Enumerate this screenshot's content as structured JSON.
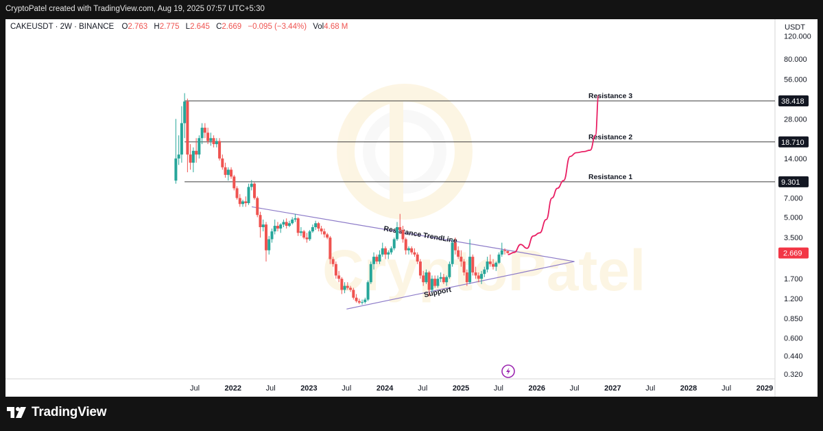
{
  "header": {
    "attribution": "CryptoPatel created with TradingView.com, Aug 19, 2025 07:57 UTC+5:30"
  },
  "legend": {
    "symbol": "CAKEUSDT · 2W · BINANCE",
    "o_label": "O",
    "o_value": "2.763",
    "h_label": "H",
    "h_value": "2.775",
    "l_label": "L",
    "l_value": "2.645",
    "c_label": "C",
    "c_value": "2.669",
    "change": "−0.095 (−3.44%)",
    "vol_label": "Vol",
    "vol_value": "4.68 M"
  },
  "footer": {
    "brand": "TradingView"
  },
  "colors": {
    "up": "#26a69a",
    "down": "#ef5350",
    "projection": "#e91e63",
    "trendline": "#8c7ac8",
    "level": "#3a3a3a",
    "price_badge": "#f23645",
    "watermark": "#f3c969"
  },
  "chart_data": {
    "type": "candlestick",
    "symbol": "CAKEUSDT",
    "interval": "2W",
    "exchange": "BINANCE",
    "y_scale": "log",
    "y_unit": "USDT",
    "y_ticks": [
      "120.000",
      "80.000",
      "56.000",
      "38.418",
      "28.000",
      "18.710",
      "14.000",
      "9.301",
      "7.000",
      "5.000",
      "3.500",
      "2.669",
      "1.700",
      "1.200",
      "0.850",
      "0.600",
      "0.440",
      "0.320"
    ],
    "y_tick_values": [
      120,
      80,
      56,
      28,
      14,
      7,
      5,
      3.5,
      1.7,
      1.2,
      0.85,
      0.6,
      0.44,
      0.32
    ],
    "x_ticks": [
      "Jul",
      "2022",
      "Jul",
      "2023",
      "Jul",
      "2024",
      "Jul",
      "2025",
      "Jul",
      "2026",
      "Jul",
      "2027",
      "Jul",
      "2028",
      "Jul",
      "2029"
    ],
    "x_tick_dates": [
      "2021-07-01",
      "2022-01-01",
      "2022-07-01",
      "2023-01-01",
      "2023-07-01",
      "2024-01-01",
      "2024-07-01",
      "2025-01-01",
      "2025-07-01",
      "2026-01-01",
      "2026-07-01",
      "2027-01-01",
      "2027-07-01",
      "2028-01-01",
      "2028-07-01",
      "2029-01-01"
    ],
    "last_price": "2.669",
    "horizontal_levels": [
      {
        "name": "Resistance 3",
        "value": 38.418,
        "label": "38.418"
      },
      {
        "name": "Resistance 2",
        "value": 18.71,
        "label": "18.710"
      },
      {
        "name": "Resistance 1",
        "value": 9.301,
        "label": "9.301"
      }
    ],
    "trendlines": [
      {
        "name": "Resistance TrendLine",
        "from": {
          "date": "2022-04-01",
          "value": 6.0
        },
        "to": {
          "date": "2026-07-01",
          "value": 2.3
        }
      },
      {
        "name": "Support",
        "from": {
          "date": "2023-07-01",
          "value": 1.0
        },
        "to": {
          "date": "2026-07-01",
          "value": 2.3
        }
      }
    ],
    "projection_path": [
      {
        "date": "2025-08-15",
        "value": 2.6
      },
      {
        "date": "2025-09-15",
        "value": 2.7
      },
      {
        "date": "2025-10-15",
        "value": 3.1
      },
      {
        "date": "2025-11-15",
        "value": 2.9
      },
      {
        "date": "2025-12-15",
        "value": 3.6
      },
      {
        "date": "2026-01-15",
        "value": 3.8
      },
      {
        "date": "2026-02-15",
        "value": 4.8
      },
      {
        "date": "2026-03-15",
        "value": 7.0
      },
      {
        "date": "2026-04-10",
        "value": 8.3
      },
      {
        "date": "2026-05-10",
        "value": 9.5
      },
      {
        "date": "2026-06-10",
        "value": 14.5
      },
      {
        "date": "2026-07-10",
        "value": 15.5
      },
      {
        "date": "2026-08-15",
        "value": 15.8
      },
      {
        "date": "2026-09-15",
        "value": 16.2
      },
      {
        "date": "2026-10-10",
        "value": 21.0
      },
      {
        "date": "2026-10-25",
        "value": 42.0
      }
    ],
    "candles": [
      {
        "date": "2021-04-01",
        "o": 9.5,
        "h": 28.0,
        "l": 9.0,
        "c": 14.0
      },
      {
        "date": "2021-04-15",
        "o": 14.0,
        "h": 21.0,
        "l": 12.5,
        "c": 15.0
      },
      {
        "date": "2021-04-29",
        "o": 15.0,
        "h": 35.0,
        "l": 13.0,
        "c": 26.0
      },
      {
        "date": "2021-05-13",
        "o": 26.0,
        "h": 44.0,
        "l": 20.0,
        "c": 38.0
      },
      {
        "date": "2021-05-27",
        "o": 38.0,
        "h": 40.0,
        "l": 11.0,
        "c": 15.0
      },
      {
        "date": "2021-06-10",
        "o": 15.0,
        "h": 18.0,
        "l": 11.5,
        "c": 13.0
      },
      {
        "date": "2021-06-24",
        "o": 13.0,
        "h": 17.0,
        "l": 11.0,
        "c": 16.0
      },
      {
        "date": "2021-07-08",
        "o": 16.0,
        "h": 20.0,
        "l": 13.0,
        "c": 15.0
      },
      {
        "date": "2021-07-22",
        "o": 15.0,
        "h": 21.0,
        "l": 14.0,
        "c": 20.0
      },
      {
        "date": "2021-08-05",
        "o": 20.0,
        "h": 26.0,
        "l": 18.0,
        "c": 24.0
      },
      {
        "date": "2021-08-19",
        "o": 24.0,
        "h": 26.0,
        "l": 20.0,
        "c": 22.0
      },
      {
        "date": "2021-09-02",
        "o": 22.0,
        "h": 24.0,
        "l": 18.0,
        "c": 19.0
      },
      {
        "date": "2021-09-16",
        "o": 19.0,
        "h": 22.0,
        "l": 17.5,
        "c": 20.0
      },
      {
        "date": "2021-09-30",
        "o": 20.0,
        "h": 21.0,
        "l": 17.0,
        "c": 18.0
      },
      {
        "date": "2021-10-14",
        "o": 18.0,
        "h": 20.0,
        "l": 17.0,
        "c": 19.0
      },
      {
        "date": "2021-10-28",
        "o": 19.0,
        "h": 20.0,
        "l": 13.5,
        "c": 14.0
      },
      {
        "date": "2021-11-11",
        "o": 14.0,
        "h": 15.0,
        "l": 11.5,
        "c": 12.0
      },
      {
        "date": "2021-11-25",
        "o": 12.0,
        "h": 13.0,
        "l": 10.0,
        "c": 10.5
      },
      {
        "date": "2021-12-09",
        "o": 10.5,
        "h": 12.0,
        "l": 9.5,
        "c": 11.5
      },
      {
        "date": "2021-12-23",
        "o": 11.5,
        "h": 12.0,
        "l": 9.8,
        "c": 10.2
      },
      {
        "date": "2022-01-06",
        "o": 10.2,
        "h": 10.5,
        "l": 8.0,
        "c": 8.3
      },
      {
        "date": "2022-01-20",
        "o": 8.3,
        "h": 8.6,
        "l": 6.8,
        "c": 7.0
      },
      {
        "date": "2022-02-03",
        "o": 7.0,
        "h": 7.5,
        "l": 6.0,
        "c": 6.3
      },
      {
        "date": "2022-02-17",
        "o": 6.3,
        "h": 6.8,
        "l": 6.0,
        "c": 6.6
      },
      {
        "date": "2022-03-03",
        "o": 6.6,
        "h": 7.2,
        "l": 6.0,
        "c": 6.4
      },
      {
        "date": "2022-03-17",
        "o": 6.4,
        "h": 9.0,
        "l": 6.2,
        "c": 8.5
      },
      {
        "date": "2022-03-31",
        "o": 8.5,
        "h": 9.6,
        "l": 8.0,
        "c": 9.0
      },
      {
        "date": "2022-04-14",
        "o": 9.0,
        "h": 9.2,
        "l": 6.8,
        "c": 7.0
      },
      {
        "date": "2022-04-28",
        "o": 7.0,
        "h": 7.2,
        "l": 5.0,
        "c": 5.2
      },
      {
        "date": "2022-05-12",
        "o": 5.2,
        "h": 5.5,
        "l": 3.5,
        "c": 4.2
      },
      {
        "date": "2022-05-26",
        "o": 4.2,
        "h": 4.8,
        "l": 3.9,
        "c": 4.4
      },
      {
        "date": "2022-06-09",
        "o": 4.4,
        "h": 4.6,
        "l": 2.3,
        "c": 2.8
      },
      {
        "date": "2022-06-23",
        "o": 2.8,
        "h": 3.6,
        "l": 2.6,
        "c": 3.4
      },
      {
        "date": "2022-07-07",
        "o": 3.4,
        "h": 4.1,
        "l": 3.2,
        "c": 3.9
      },
      {
        "date": "2022-07-21",
        "o": 3.9,
        "h": 4.8,
        "l": 3.7,
        "c": 4.3
      },
      {
        "date": "2022-08-04",
        "o": 4.3,
        "h": 4.6,
        "l": 3.9,
        "c": 4.1
      },
      {
        "date": "2022-08-18",
        "o": 4.1,
        "h": 4.5,
        "l": 3.8,
        "c": 4.4
      },
      {
        "date": "2022-09-01",
        "o": 4.4,
        "h": 4.8,
        "l": 4.2,
        "c": 4.6
      },
      {
        "date": "2022-09-15",
        "o": 4.6,
        "h": 4.9,
        "l": 4.1,
        "c": 4.3
      },
      {
        "date": "2022-09-29",
        "o": 4.3,
        "h": 4.7,
        "l": 4.2,
        "c": 4.5
      },
      {
        "date": "2022-10-13",
        "o": 4.5,
        "h": 5.0,
        "l": 4.4,
        "c": 4.8
      },
      {
        "date": "2022-10-27",
        "o": 4.8,
        "h": 5.3,
        "l": 4.6,
        "c": 4.9
      },
      {
        "date": "2022-11-10",
        "o": 4.9,
        "h": 5.0,
        "l": 3.6,
        "c": 3.8
      },
      {
        "date": "2022-11-24",
        "o": 3.8,
        "h": 4.2,
        "l": 3.6,
        "c": 3.9
      },
      {
        "date": "2022-12-08",
        "o": 3.9,
        "h": 4.0,
        "l": 3.4,
        "c": 3.5
      },
      {
        "date": "2022-12-22",
        "o": 3.5,
        "h": 3.8,
        "l": 3.2,
        "c": 3.4
      },
      {
        "date": "2023-01-05",
        "o": 3.4,
        "h": 4.0,
        "l": 3.3,
        "c": 3.9
      },
      {
        "date": "2023-01-19",
        "o": 3.9,
        "h": 4.4,
        "l": 3.8,
        "c": 4.2
      },
      {
        "date": "2023-02-02",
        "o": 4.2,
        "h": 4.7,
        "l": 4.0,
        "c": 4.5
      },
      {
        "date": "2023-02-16",
        "o": 4.5,
        "h": 4.6,
        "l": 3.9,
        "c": 4.1
      },
      {
        "date": "2023-03-02",
        "o": 4.1,
        "h": 4.3,
        "l": 3.7,
        "c": 3.9
      },
      {
        "date": "2023-03-16",
        "o": 3.9,
        "h": 4.1,
        "l": 3.5,
        "c": 3.7
      },
      {
        "date": "2023-03-30",
        "o": 3.7,
        "h": 3.8,
        "l": 3.4,
        "c": 3.5
      },
      {
        "date": "2023-04-13",
        "o": 3.5,
        "h": 3.6,
        "l": 2.2,
        "c": 2.4
      },
      {
        "date": "2023-04-27",
        "o": 2.4,
        "h": 2.5,
        "l": 2.1,
        "c": 2.2
      },
      {
        "date": "2023-05-11",
        "o": 2.2,
        "h": 2.3,
        "l": 1.7,
        "c": 1.8
      },
      {
        "date": "2023-05-25",
        "o": 1.8,
        "h": 1.95,
        "l": 1.6,
        "c": 1.7
      },
      {
        "date": "2023-06-08",
        "o": 1.7,
        "h": 1.75,
        "l": 1.3,
        "c": 1.4
      },
      {
        "date": "2023-06-22",
        "o": 1.4,
        "h": 1.6,
        "l": 1.32,
        "c": 1.5
      },
      {
        "date": "2023-07-06",
        "o": 1.5,
        "h": 1.6,
        "l": 1.4,
        "c": 1.45
      },
      {
        "date": "2023-07-20",
        "o": 1.45,
        "h": 1.5,
        "l": 1.35,
        "c": 1.4
      },
      {
        "date": "2023-08-03",
        "o": 1.4,
        "h": 1.45,
        "l": 1.18,
        "c": 1.22
      },
      {
        "date": "2023-08-17",
        "o": 1.22,
        "h": 1.3,
        "l": 1.12,
        "c": 1.15
      },
      {
        "date": "2023-08-31",
        "o": 1.15,
        "h": 1.2,
        "l": 1.09,
        "c": 1.12
      },
      {
        "date": "2023-09-14",
        "o": 1.12,
        "h": 1.18,
        "l": 1.08,
        "c": 1.13
      },
      {
        "date": "2023-09-28",
        "o": 1.13,
        "h": 1.22,
        "l": 1.1,
        "c": 1.18
      },
      {
        "date": "2023-10-12",
        "o": 1.18,
        "h": 1.65,
        "l": 1.15,
        "c": 1.6
      },
      {
        "date": "2023-10-26",
        "o": 1.6,
        "h": 2.3,
        "l": 1.55,
        "c": 2.2
      },
      {
        "date": "2023-11-09",
        "o": 2.2,
        "h": 2.7,
        "l": 2.0,
        "c": 2.5
      },
      {
        "date": "2023-11-23",
        "o": 2.5,
        "h": 2.6,
        "l": 2.2,
        "c": 2.3
      },
      {
        "date": "2023-12-07",
        "o": 2.3,
        "h": 2.8,
        "l": 2.2,
        "c": 2.6
      },
      {
        "date": "2023-12-21",
        "o": 2.6,
        "h": 3.2,
        "l": 2.5,
        "c": 2.9
      },
      {
        "date": "2024-01-04",
        "o": 2.9,
        "h": 3.0,
        "l": 2.4,
        "c": 2.6
      },
      {
        "date": "2024-01-18",
        "o": 2.6,
        "h": 2.8,
        "l": 2.4,
        "c": 2.7
      },
      {
        "date": "2024-02-01",
        "o": 2.7,
        "h": 3.0,
        "l": 2.6,
        "c": 2.9
      },
      {
        "date": "2024-02-15",
        "o": 2.9,
        "h": 3.5,
        "l": 2.8,
        "c": 3.4
      },
      {
        "date": "2024-02-29",
        "o": 3.4,
        "h": 4.6,
        "l": 3.3,
        "c": 4.2
      },
      {
        "date": "2024-03-14",
        "o": 4.2,
        "h": 5.3,
        "l": 3.8,
        "c": 4.0
      },
      {
        "date": "2024-03-28",
        "o": 4.0,
        "h": 4.3,
        "l": 3.2,
        "c": 3.4
      },
      {
        "date": "2024-04-11",
        "o": 3.4,
        "h": 3.5,
        "l": 2.6,
        "c": 2.8
      },
      {
        "date": "2024-04-25",
        "o": 2.8,
        "h": 3.0,
        "l": 2.6,
        "c": 2.9
      },
      {
        "date": "2024-05-09",
        "o": 2.9,
        "h": 3.0,
        "l": 2.6,
        "c": 2.7
      },
      {
        "date": "2024-05-23",
        "o": 2.7,
        "h": 2.9,
        "l": 2.5,
        "c": 2.6
      },
      {
        "date": "2024-06-06",
        "o": 2.6,
        "h": 2.7,
        "l": 2.2,
        "c": 2.3
      },
      {
        "date": "2024-06-20",
        "o": 2.3,
        "h": 2.4,
        "l": 1.7,
        "c": 1.8
      },
      {
        "date": "2024-07-04",
        "o": 1.8,
        "h": 1.95,
        "l": 1.5,
        "c": 1.6
      },
      {
        "date": "2024-07-18",
        "o": 1.6,
        "h": 2.0,
        "l": 1.55,
        "c": 1.9
      },
      {
        "date": "2024-08-01",
        "o": 1.9,
        "h": 1.95,
        "l": 1.25,
        "c": 1.4
      },
      {
        "date": "2024-08-15",
        "o": 1.4,
        "h": 1.8,
        "l": 1.35,
        "c": 1.7
      },
      {
        "date": "2024-08-29",
        "o": 1.7,
        "h": 1.8,
        "l": 1.45,
        "c": 1.5
      },
      {
        "date": "2024-09-12",
        "o": 1.5,
        "h": 1.8,
        "l": 1.45,
        "c": 1.7
      },
      {
        "date": "2024-09-26",
        "o": 1.7,
        "h": 1.9,
        "l": 1.6,
        "c": 1.75
      },
      {
        "date": "2024-10-10",
        "o": 1.75,
        "h": 1.85,
        "l": 1.55,
        "c": 1.6
      },
      {
        "date": "2024-10-24",
        "o": 1.6,
        "h": 1.8,
        "l": 1.5,
        "c": 1.75
      },
      {
        "date": "2024-11-07",
        "o": 1.75,
        "h": 2.3,
        "l": 1.7,
        "c": 2.2
      },
      {
        "date": "2024-11-21",
        "o": 2.2,
        "h": 3.4,
        "l": 2.1,
        "c": 3.2
      },
      {
        "date": "2024-12-05",
        "o": 3.2,
        "h": 3.5,
        "l": 2.6,
        "c": 2.8
      },
      {
        "date": "2024-12-19",
        "o": 2.8,
        "h": 3.0,
        "l": 2.4,
        "c": 2.5
      },
      {
        "date": "2025-01-02",
        "o": 2.5,
        "h": 2.8,
        "l": 2.1,
        "c": 2.3
      },
      {
        "date": "2025-01-16",
        "o": 2.3,
        "h": 2.4,
        "l": 1.8,
        "c": 1.9
      },
      {
        "date": "2025-01-30",
        "o": 1.9,
        "h": 2.0,
        "l": 1.5,
        "c": 1.6
      },
      {
        "date": "2025-02-13",
        "o": 1.6,
        "h": 3.4,
        "l": 1.55,
        "c": 2.5
      },
      {
        "date": "2025-02-27",
        "o": 2.5,
        "h": 2.6,
        "l": 1.8,
        "c": 1.9
      },
      {
        "date": "2025-03-13",
        "o": 1.9,
        "h": 2.1,
        "l": 1.7,
        "c": 1.8
      },
      {
        "date": "2025-03-27",
        "o": 1.8,
        "h": 1.9,
        "l": 1.6,
        "c": 1.7
      },
      {
        "date": "2025-04-10",
        "o": 1.7,
        "h": 1.95,
        "l": 1.55,
        "c": 1.85
      },
      {
        "date": "2025-04-24",
        "o": 1.85,
        "h": 2.1,
        "l": 1.75,
        "c": 2.0
      },
      {
        "date": "2025-05-08",
        "o": 2.0,
        "h": 2.5,
        "l": 1.9,
        "c": 2.3
      },
      {
        "date": "2025-05-22",
        "o": 2.3,
        "h": 2.6,
        "l": 2.1,
        "c": 2.2
      },
      {
        "date": "2025-06-05",
        "o": 2.2,
        "h": 2.4,
        "l": 2.0,
        "c": 2.1
      },
      {
        "date": "2025-06-19",
        "o": 2.1,
        "h": 2.3,
        "l": 1.95,
        "c": 2.25
      },
      {
        "date": "2025-07-03",
        "o": 2.25,
        "h": 2.7,
        "l": 2.2,
        "c": 2.6
      },
      {
        "date": "2025-07-17",
        "o": 2.6,
        "h": 3.2,
        "l": 2.5,
        "c": 2.8
      },
      {
        "date": "2025-07-31",
        "o": 2.8,
        "h": 2.9,
        "l": 2.6,
        "c": 2.763
      },
      {
        "date": "2025-08-14",
        "o": 2.763,
        "h": 2.775,
        "l": 2.645,
        "c": 2.669
      }
    ]
  }
}
